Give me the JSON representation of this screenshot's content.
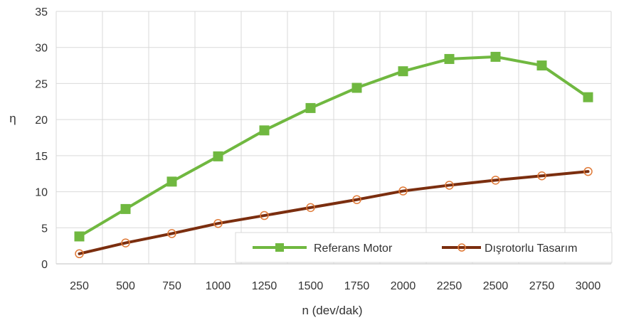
{
  "chart_data": {
    "type": "line",
    "x": [
      250,
      500,
      750,
      1000,
      1250,
      1500,
      1750,
      2000,
      2250,
      2500,
      2750,
      3000
    ],
    "x_tick_labels": [
      "250",
      "500",
      "750",
      "1000",
      "1250",
      "1500",
      "1750",
      "2000",
      "2250",
      "2500",
      "2750",
      "3000"
    ],
    "y_tick_labels": [
      "0",
      "5",
      "10",
      "15",
      "20",
      "25",
      "30",
      "35"
    ],
    "ylim": [
      0,
      35
    ],
    "xlabel": "n (dev/dak)",
    "ylabel": "η",
    "grid": true,
    "legend_position": "bottom-right",
    "series": [
      {
        "name": "Referans Motor",
        "marker": "square",
        "color": "#70b840",
        "values": [
          3.8,
          7.6,
          11.4,
          14.9,
          18.5,
          21.6,
          24.4,
          26.7,
          28.4,
          28.7,
          27.5,
          23.1
        ]
      },
      {
        "name": "Dışrotorlu Tasarım",
        "marker": "circle",
        "color": "#7b2e0f",
        "values": [
          1.4,
          2.9,
          4.2,
          5.6,
          6.7,
          7.8,
          8.9,
          10.1,
          10.9,
          11.6,
          12.2,
          12.8
        ]
      }
    ]
  }
}
